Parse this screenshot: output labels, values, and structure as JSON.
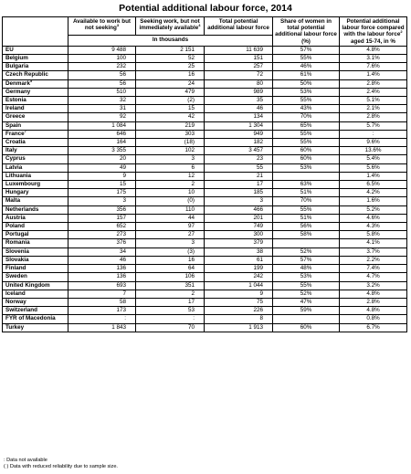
{
  "title": "Potential additional labour force, 2014",
  "headers": {
    "available": "Available to work but not seeking",
    "available_sup": "3",
    "seeking": "Seeking work, but not immediately available",
    "seeking_sup": "4",
    "total": "Total potential additional labour force",
    "share": "Share of women in total potential additional labour force (%)",
    "potential": "Potential additional labour force compared with the labour force",
    "potential_sup": "2",
    "potential_tail": " aged 15-74, in %",
    "units": "In thousands"
  },
  "rows": [
    {
      "country": "EU",
      "sup": "",
      "a": "9 488",
      "s": "2 151",
      "t": "11 639",
      "w": "57%",
      "p": "4.8%"
    },
    {
      "country": "Belgium",
      "sup": "",
      "a": "100",
      "s": "52",
      "t": "151",
      "w": "55%",
      "p": "3.1%"
    },
    {
      "country": "Bulgaria",
      "sup": "",
      "a": "232",
      "s": "25",
      "t": "257",
      "w": "46%",
      "p": "7.6%"
    },
    {
      "country": "Czech Republic",
      "sup": "",
      "a": "56",
      "s": "16",
      "t": "72",
      "w": "61%",
      "p": "1.4%"
    },
    {
      "country": "Denmark",
      "sup": "5",
      "a": "56",
      "s": "24",
      "t": "80",
      "w": "50%",
      "p": "2.8%"
    },
    {
      "country": "Germany",
      "sup": "",
      "a": "510",
      "s": "479",
      "t": "989",
      "w": "53%",
      "p": "2.4%"
    },
    {
      "country": "Estonia",
      "sup": "",
      "a": "32",
      "s": "(2)",
      "t": "35",
      "w": "55%",
      "p": "5.1%"
    },
    {
      "country": "Ireland",
      "sup": "",
      "a": "31",
      "s": "15",
      "t": "46",
      "w": "43%",
      "p": "2.1%"
    },
    {
      "country": "Greece",
      "sup": "",
      "a": "92",
      "s": "42",
      "t": "134",
      "w": "70%",
      "p": "2.8%"
    },
    {
      "country": "Spain",
      "sup": "",
      "a": "1 084",
      "s": "219",
      "t": "1 304",
      "w": "65%",
      "p": "5.7%"
    },
    {
      "country": "France",
      "sup": "7",
      "a": "646",
      "s": "303",
      "t": "949",
      "w": "55%",
      "p": ":"
    },
    {
      "country": "Croatia",
      "sup": "",
      "a": "164",
      "s": "(18)",
      "t": "182",
      "w": "55%",
      "p": "9.6%"
    },
    {
      "country": "Italy",
      "sup": "",
      "a": "3 355",
      "s": "102",
      "t": "3 457",
      "w": "60%",
      "p": "13.6%"
    },
    {
      "country": "Cyprus",
      "sup": "",
      "a": "20",
      "s": "3",
      "t": "23",
      "w": "60%",
      "p": "5.4%"
    },
    {
      "country": "Latvia",
      "sup": "",
      "a": "49",
      "s": "6",
      "t": "55",
      "w": "53%",
      "p": "5.6%"
    },
    {
      "country": "Lithuania",
      "sup": "",
      "a": "9",
      "s": "12",
      "t": "21",
      "w": "",
      "p": "1.4%"
    },
    {
      "country": "Luxembourg",
      "sup": "",
      "a": "15",
      "s": "2",
      "t": "17",
      "w": "63%",
      "p": "6.5%"
    },
    {
      "country": "Hungary",
      "sup": "",
      "a": "175",
      "s": "10",
      "t": "185",
      "w": "51%",
      "p": "4.2%"
    },
    {
      "country": "Malta",
      "sup": "",
      "a": "3",
      "s": "(0)",
      "t": "3",
      "w": "70%",
      "p": "1.6%"
    },
    {
      "country": "Netherlands",
      "sup": "",
      "a": "356",
      "s": "110",
      "t": "466",
      "w": "55%",
      "p": "5.2%"
    },
    {
      "country": "Austria",
      "sup": "",
      "a": "157",
      "s": "44",
      "t": "201",
      "w": "51%",
      "p": "4.6%"
    },
    {
      "country": "Poland",
      "sup": "",
      "a": "652",
      "s": "97",
      "t": "749",
      "w": "56%",
      "p": "4.3%"
    },
    {
      "country": "Portugal",
      "sup": "",
      "a": "273",
      "s": "27",
      "t": "300",
      "w": "58%",
      "p": "5.8%"
    },
    {
      "country": "Romania",
      "sup": "",
      "a": "376",
      "s": "3",
      "t": "379",
      "w": "",
      "p": "4.1%"
    },
    {
      "country": "Slovenia",
      "sup": "",
      "a": "34",
      "s": "(3)",
      "t": "38",
      "w": "52%",
      "p": "3.7%"
    },
    {
      "country": "Slovakia",
      "sup": "",
      "a": "46",
      "s": "16",
      "t": "61",
      "w": "57%",
      "p": "2.2%"
    },
    {
      "country": "Finland",
      "sup": "",
      "a": "136",
      "s": "64",
      "t": "199",
      "w": "48%",
      "p": "7.4%"
    },
    {
      "country": "Sweden",
      "sup": "",
      "a": "136",
      "s": "106",
      "t": "242",
      "w": "53%",
      "p": "4.7%"
    },
    {
      "country": "United Kingdom",
      "sup": "",
      "a": "693",
      "s": "351",
      "t": "1 044",
      "w": "55%",
      "p": "3.2%"
    },
    {
      "country": "Iceland",
      "sup": "",
      "a": "7",
      "s": "2",
      "t": "9",
      "w": "52%",
      "p": "4.8%"
    },
    {
      "country": "Norway",
      "sup": "",
      "a": "58",
      "s": "17",
      "t": "75",
      "w": "47%",
      "p": "2.8%"
    },
    {
      "country": "Switzerland",
      "sup": "",
      "a": "173",
      "s": "53",
      "t": "226",
      "w": "59%",
      "p": "4.8%"
    },
    {
      "country": "FYR of Macedonia",
      "sup": "",
      "a": ":",
      "s": ":",
      "t": "8",
      "w": "",
      "p": "0.8%"
    },
    {
      "country": "Turkey",
      "sup": "",
      "a": "1 843",
      "s": "70",
      "t": "1 913",
      "w": "60%",
      "p": "6.7%"
    }
  ],
  "notes": [
    ":   Data not available",
    "( )  Data with reduced reliability due to sample size."
  ]
}
